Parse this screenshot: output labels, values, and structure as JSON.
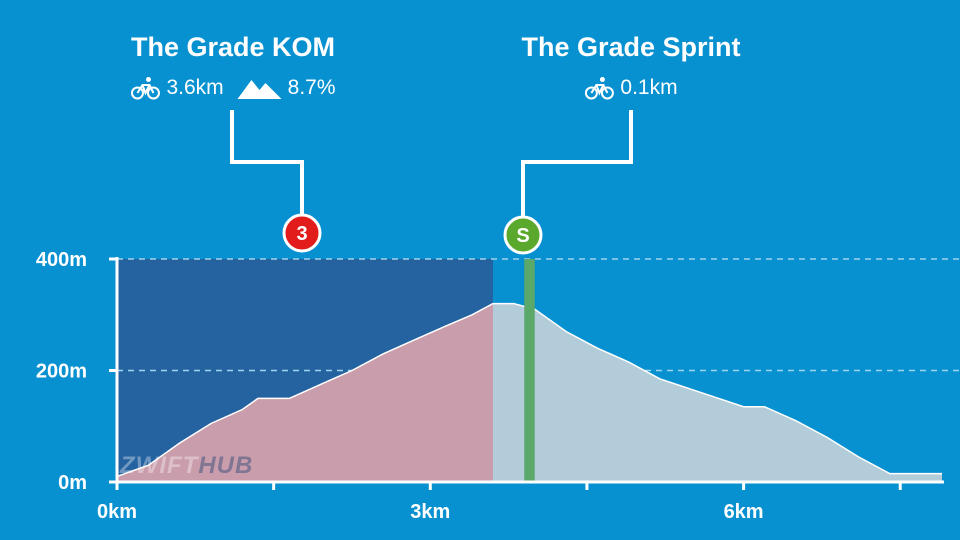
{
  "segments": [
    {
      "name": "The Grade KOM",
      "distance": "3.6km",
      "grade": "8.7%",
      "marker": "3",
      "marker_color": "#e21b1b",
      "start_km": 0,
      "end_km": 3.6,
      "fill_color": "rgba(60,60,120,0.55)",
      "icons": [
        "bike-icon",
        "mountain-icon"
      ]
    },
    {
      "name": "The Grade Sprint",
      "distance": "0.1km",
      "marker": "S",
      "marker_color": "#5aa82c",
      "start_km": 3.9,
      "end_km": 4.0,
      "fill_color": "#5aa86a",
      "icons": [
        "bike-icon"
      ]
    }
  ],
  "watermark": {
    "part1": "ZWIFT",
    "part2": "HUB"
  },
  "chart_data": {
    "type": "area",
    "xlabel": "",
    "ylabel": "",
    "x_unit": "km",
    "y_unit": "m",
    "xlim": [
      0,
      7.9
    ],
    "ylim": [
      0,
      400
    ],
    "x_ticks": [
      0,
      1.5,
      3,
      4.5,
      6,
      7.5
    ],
    "x_tick_labels": [
      "0km",
      "",
      "3km",
      "",
      "6km",
      ""
    ],
    "y_ticks": [
      0,
      200,
      400
    ],
    "y_tick_labels": [
      "0m",
      "200m",
      "400m"
    ],
    "gridlines": "dashed at 200m and 400m",
    "series": [
      {
        "x": [
          0,
          0.3,
          0.6,
          0.9,
          1.2,
          1.35,
          1.65,
          1.95,
          2.25,
          2.55,
          2.85,
          3.15,
          3.4,
          3.6,
          3.8,
          4.0,
          4.3,
          4.6,
          4.9,
          5.2,
          5.6,
          6.0,
          6.2,
          6.5,
          6.8,
          7.1,
          7.4,
          7.6,
          7.9
        ],
        "y": [
          10,
          30,
          70,
          105,
          130,
          150,
          150,
          175,
          200,
          230,
          255,
          280,
          300,
          320,
          320,
          310,
          270,
          240,
          215,
          185,
          160,
          135,
          135,
          110,
          80,
          45,
          15,
          15,
          15
        ]
      }
    ],
    "colors": {
      "background": "#0891d1",
      "profile_fill": "#b2ccd9",
      "climb_fill": "#c99dab",
      "profile_stroke": "#ffffff",
      "grid": "#9fd3ee"
    }
  }
}
